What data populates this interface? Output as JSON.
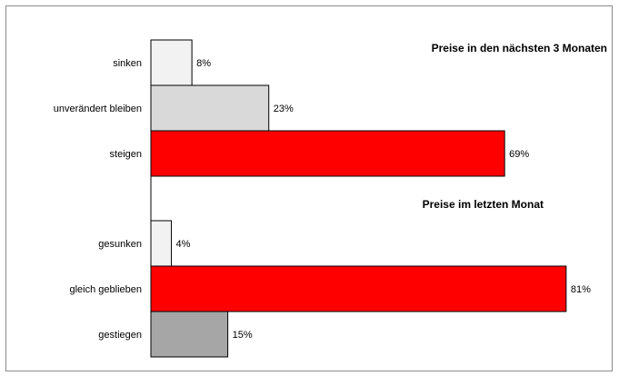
{
  "chart_data": {
    "type": "bar",
    "orientation": "horizontal",
    "xlim": [
      0,
      100
    ],
    "unit": "%",
    "grid": false,
    "groups": [
      {
        "title": "Preise in den nächsten 3 Monaten",
        "bars": [
          {
            "label": "sinken",
            "value": 8,
            "value_label": "8%",
            "color": "#f2f2f2"
          },
          {
            "label": "unverändert bleiben",
            "value": 23,
            "value_label": "23%",
            "color": "#d9d9d9"
          },
          {
            "label": "steigen",
            "value": 69,
            "value_label": "69%",
            "color": "#ff0000"
          }
        ]
      },
      {
        "title": "Preise im letzten Monat",
        "bars": [
          {
            "label": "gesunken",
            "value": 4,
            "value_label": "4%",
            "color": "#f2f2f2"
          },
          {
            "label": "gleich geblieben",
            "value": 81,
            "value_label": "81%",
            "color": "#ff0000"
          },
          {
            "label": "gestiegen",
            "value": 15,
            "value_label": "15%",
            "color": "#a6a6a6"
          }
        ]
      }
    ]
  }
}
